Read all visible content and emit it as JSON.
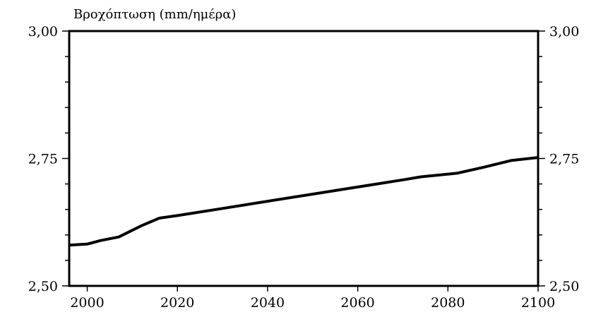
{
  "chart_data": {
    "type": "line",
    "title": "Βροχόπτωση (mm/ημέρα)",
    "xlabel": "",
    "ylabel": "",
    "xlim": [
      1996,
      2100
    ],
    "ylim": [
      2.5,
      3.0
    ],
    "x_ticks": [
      2000,
      2020,
      2040,
      2060,
      2080,
      2100
    ],
    "x_tick_labels": [
      "2000",
      "2020",
      "2040",
      "2060",
      "2080",
      "2100"
    ],
    "y_ticks": [
      2.5,
      2.75,
      3.0
    ],
    "y_tick_labels": [
      "2,50",
      "2,75",
      "3,00"
    ],
    "y_minor_step": 0.05,
    "grid": false,
    "legend": "none",
    "right_axis_mirrors_left": true,
    "line_color": "#000000",
    "series": [
      {
        "x": [
          1996,
          2000,
          2003,
          2007,
          2012,
          2016,
          2020,
          2030,
          2040,
          2050,
          2060,
          2070,
          2074,
          2082,
          2088,
          2094,
          2100
        ],
        "values": [
          2.58,
          2.582,
          2.589,
          2.596,
          2.618,
          2.633,
          2.638,
          2.652,
          2.666,
          2.68,
          2.694,
          2.708,
          2.714,
          2.721,
          2.733,
          2.746,
          2.752
        ]
      }
    ]
  }
}
